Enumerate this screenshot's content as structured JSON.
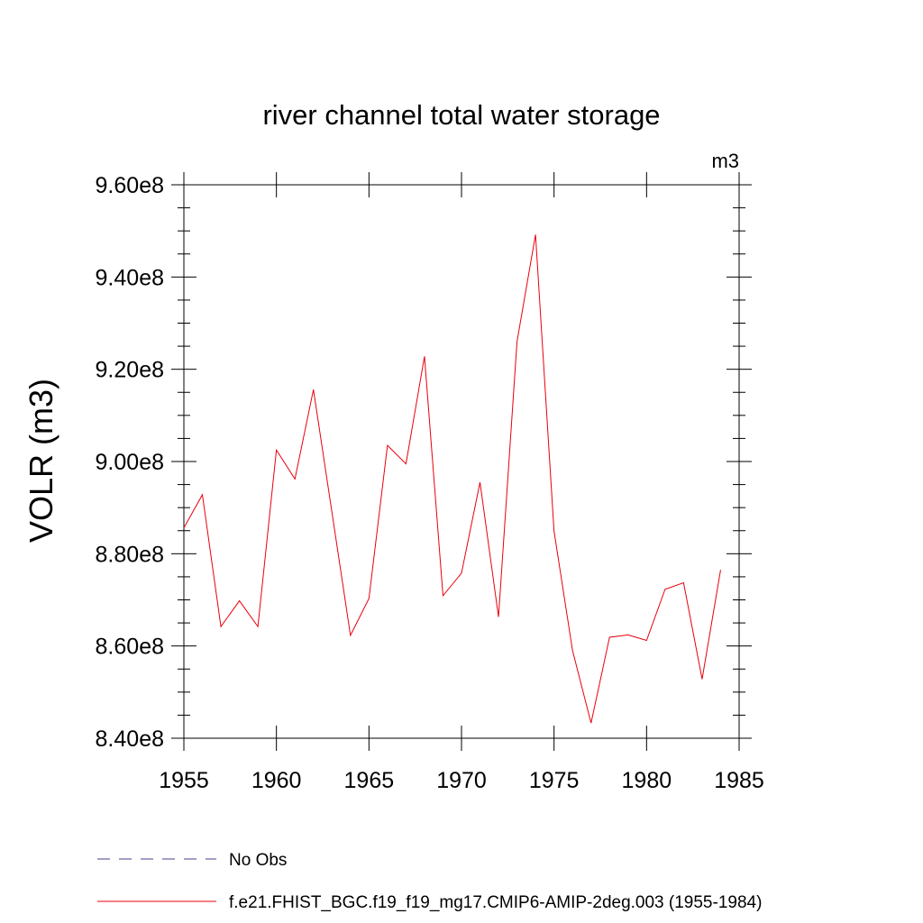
{
  "chart_data": {
    "type": "line",
    "title": "river channel total water storage",
    "ylabel": "VOLR  (m3)",
    "units_label": "m3",
    "xlim": [
      1955,
      1985
    ],
    "ylim": [
      840000000,
      960000000
    ],
    "x_ticks": [
      1955,
      1960,
      1965,
      1970,
      1975,
      1980,
      1985
    ],
    "x_tick_labels": [
      "1955",
      "1960",
      "1965",
      "1970",
      "1975",
      "1980",
      "1985"
    ],
    "y_ticks": [
      840000000,
      860000000,
      880000000,
      900000000,
      920000000,
      940000000,
      960000000
    ],
    "y_tick_labels": [
      "8.40e8",
      "8.60e8",
      "8.80e8",
      "9.00e8",
      "9.20e8",
      "9.40e8",
      "9.60e8"
    ],
    "grid": false,
    "legend_position": "bottom",
    "series": [
      {
        "name": "No Obs",
        "color": "#4b3c8c",
        "dash": "dashed",
        "x": [],
        "values": []
      },
      {
        "name": "f.e21.FHIST_BGC.f19_f19_mg17.CMIP6-AMIP-2deg.003 (1955-1984)",
        "color": "#e8000b",
        "dash": "solid",
        "x": [
          1955,
          1956,
          1957,
          1958,
          1959,
          1960,
          1961,
          1962,
          1963,
          1964,
          1965,
          1966,
          1967,
          1968,
          1969,
          1970,
          1971,
          1972,
          1973,
          1974,
          1975,
          1976,
          1977,
          1978,
          1979,
          1980,
          1981,
          1982,
          1983,
          1984
        ],
        "values": [
          885600000,
          892800000,
          864200000,
          869800000,
          864200000,
          902500000,
          896200000,
          915600000,
          889000000,
          862300000,
          870300000,
          903500000,
          899500000,
          922800000,
          870900000,
          875800000,
          895500000,
          866300000,
          926000000,
          949200000,
          884900000,
          859000000,
          843300000,
          861900000,
          862400000,
          861200000,
          872300000,
          873700000,
          852800000,
          876500000
        ]
      }
    ]
  }
}
